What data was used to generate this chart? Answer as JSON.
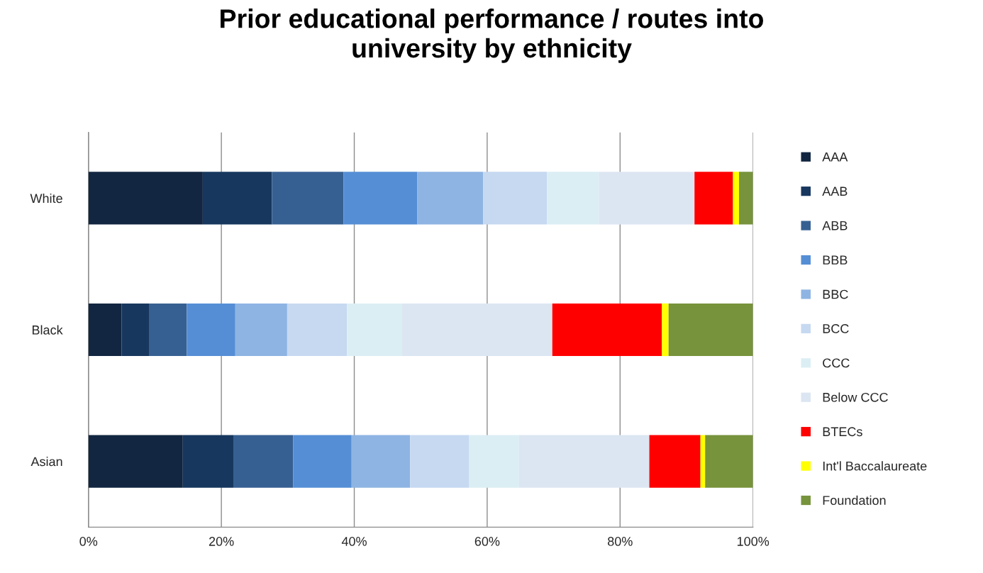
{
  "chart_data": {
    "type": "bar",
    "orientation": "horizontal",
    "stacked": true,
    "title": "Prior educational performance / routes into\nuniversity by ethnicity",
    "categories": [
      "White",
      "Black",
      "Asian"
    ],
    "series": [
      {
        "name": "AAA",
        "color": "#122641",
        "values": [
          17.2,
          5.0,
          14.2
        ]
      },
      {
        "name": "AAB",
        "color": "#17375e",
        "values": [
          10.4,
          4.1,
          7.6
        ]
      },
      {
        "name": "ABB",
        "color": "#376092",
        "values": [
          10.8,
          5.7,
          9.0
        ]
      },
      {
        "name": "BBB",
        "color": "#558ed5",
        "values": [
          11.1,
          7.3,
          8.8
        ]
      },
      {
        "name": "BBC",
        "color": "#8eb4e3",
        "values": [
          9.9,
          7.8,
          8.8
        ]
      },
      {
        "name": "BCC",
        "color": "#c6d9f1",
        "values": [
          9.6,
          9.0,
          8.9
        ]
      },
      {
        "name": "CCC",
        "color": "#dbeef4",
        "values": [
          7.8,
          8.3,
          7.5
        ]
      },
      {
        "name": "Below CCC",
        "color": "#dce6f2",
        "values": [
          14.4,
          22.6,
          19.6
        ]
      },
      {
        "name": "BTECs",
        "color": "#ff0000",
        "values": [
          5.8,
          16.5,
          7.7
        ]
      },
      {
        "name": "Int'l Baccalaureate",
        "color": "#ffff00",
        "values": [
          0.9,
          1.0,
          0.7
        ]
      },
      {
        "name": "Foundation",
        "color": "#77933c",
        "values": [
          2.1,
          12.7,
          7.2
        ]
      }
    ],
    "xlim": [
      0,
      100
    ],
    "xticks": [
      {
        "value": 0,
        "label": "0%"
      },
      {
        "value": 20,
        "label": "20%"
      },
      {
        "value": 40,
        "label": "40%"
      },
      {
        "value": 60,
        "label": "60%"
      },
      {
        "value": 80,
        "label": "80%"
      },
      {
        "value": 100,
        "label": "100%"
      }
    ],
    "grid": "x",
    "legend": "right"
  }
}
